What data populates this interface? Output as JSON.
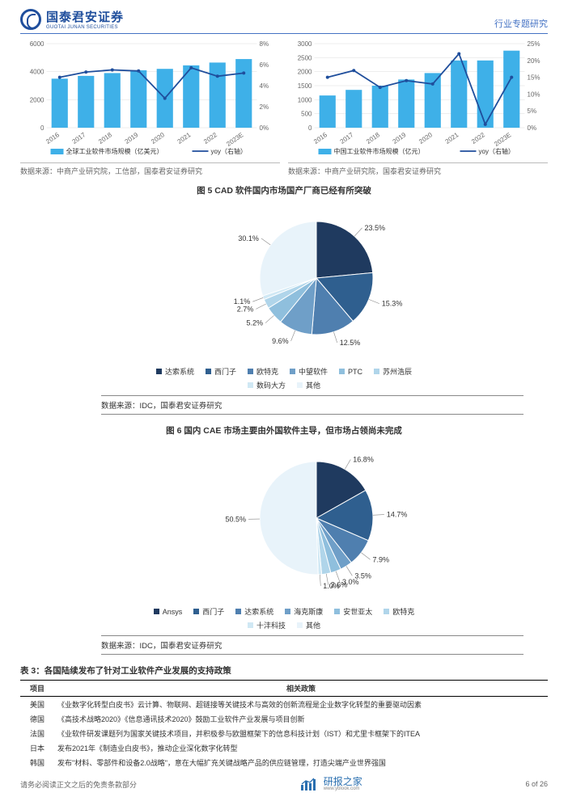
{
  "header": {
    "brand_cn": "国泰君安证券",
    "brand_en": "GUOTAI JUNAN SECURITIES",
    "category": "行业专题研究"
  },
  "chartLeft": {
    "type": "bar+line",
    "categories": [
      "2016",
      "2017",
      "2018",
      "2019",
      "2020",
      "2021",
      "2022",
      "2023E"
    ],
    "bars": [
      3500,
      3700,
      3900,
      4100,
      4200,
      4450,
      4650,
      4900
    ],
    "line_pct": [
      4.8,
      5.3,
      5.5,
      5.4,
      2.8,
      5.7,
      4.9,
      5.2
    ],
    "ylim_left": [
      0,
      6000
    ],
    "ytick_left": [
      0,
      2000,
      4000,
      6000
    ],
    "ylim_right": [
      0,
      8
    ],
    "ytick_right": [
      0,
      2,
      4,
      6,
      8
    ],
    "bar_color": "#3eb0e8",
    "line_color": "#1f4e9c",
    "legend_bar": "全球工业软件市场规模（亿美元）",
    "legend_line": "yoy（右轴）",
    "source": "数据来源：中商产业研究院，工信部，国泰君安证券研究"
  },
  "chartRight": {
    "type": "bar+line",
    "categories": [
      "2016",
      "2017",
      "2018",
      "2019",
      "2020",
      "2021",
      "2022",
      "2023E"
    ],
    "bars": [
      1150,
      1350,
      1500,
      1720,
      1950,
      2400,
      2400,
      2750
    ],
    "line_pct": [
      15,
      17,
      12,
      14,
      13,
      22,
      1,
      15
    ],
    "ylim_left": [
      0,
      3000
    ],
    "ytick_left": [
      0,
      500,
      1000,
      1500,
      2000,
      2500,
      3000
    ],
    "ylim_right": [
      0,
      25
    ],
    "ytick_right": [
      0,
      5,
      10,
      15,
      20,
      25
    ],
    "bar_color": "#3eb0e8",
    "line_color": "#1f4e9c",
    "legend_bar": "中国工业软件市场规模（亿元）",
    "legend_line": "yoy（右轴）",
    "source": "数据来源：中商产业研究院，国泰君安证券研究"
  },
  "pie1": {
    "title": "图 5 CAD 软件国内市场国产厂商已经有所突破",
    "slices": [
      {
        "label": "达索系统",
        "value": 23.5,
        "color": "#1f3a5f"
      },
      {
        "label": "西门子",
        "value": 15.3,
        "color": "#2f5f8f"
      },
      {
        "label": "欧特克",
        "value": 12.5,
        "color": "#4f7faf"
      },
      {
        "label": "中望软件",
        "value": 9.6,
        "color": "#6f9fc8"
      },
      {
        "label": "PTC",
        "value": 5.2,
        "color": "#8fbfdd"
      },
      {
        "label": "苏州浩辰",
        "value": 2.7,
        "color": "#b0d5ea"
      },
      {
        "label": "数码大方",
        "value": 1.1,
        "color": "#d0e8f4"
      },
      {
        "label": "其他",
        "value": 30.1,
        "color": "#e8f3fa"
      }
    ],
    "source": "数据来源：IDC，国泰君安证券研究"
  },
  "pie2": {
    "title": "图 6 国内 CAE 市场主要由外国软件主导，但市场占领尚未完成",
    "slices": [
      {
        "label": "Ansys",
        "value": 16.8,
        "color": "#1f3a5f"
      },
      {
        "label": "西门子",
        "value": 14.7,
        "color": "#2f5f8f"
      },
      {
        "label": "达索系统",
        "value": 7.9,
        "color": "#4f7faf"
      },
      {
        "label": "海克斯康",
        "value": 3.5,
        "color": "#6f9fc8"
      },
      {
        "label": "安世亚太",
        "value": 3.0,
        "color": "#8fbfdd"
      },
      {
        "label": "欧特克",
        "value": 2.6,
        "color": "#b0d5ea"
      },
      {
        "label": "十沣科技",
        "value": 1.0,
        "color": "#d0e8f4"
      },
      {
        "label": "其他",
        "value": 50.5,
        "color": "#e8f3fa"
      }
    ],
    "source": "数据来源：IDC，国泰君安证券研究"
  },
  "tableTitle": "表 3：各国陆续发布了针对工业软件产业发展的支持政策",
  "tableHeaders": [
    "项目",
    "相关政策"
  ],
  "tableRows": [
    [
      "美国",
      "《业数字化转型白皮书》云计算、物联网、超链接等关键技术与高效的创新流程是企业数字化转型的重要驱动因素"
    ],
    [
      "德国",
      "《高技术战略2020》《信息通讯技术2020》鼓励工业软件产业发展与项目创新"
    ],
    [
      "法国",
      "《业软件研发课题列为国家关键技术项目，并积极参与欧盟框架下的信息科技计划（IST）和尤里卡框架下的ITEA"
    ],
    [
      "日本",
      "发布2021年《制造业白皮书》，推动企业深化数字化转型"
    ],
    [
      "韩国",
      "发布\"材料、零部件和设备2.0战略\"，意在大幅扩充关键战略产品的供应链管理，打造尖端产业世界强国"
    ]
  ],
  "footer": {
    "disclaimer": "请务必阅读正文之后的免责条款部分",
    "watermark": "研报之家",
    "watermark_url": "www.yblook.com",
    "pagination": "6 of 26"
  }
}
